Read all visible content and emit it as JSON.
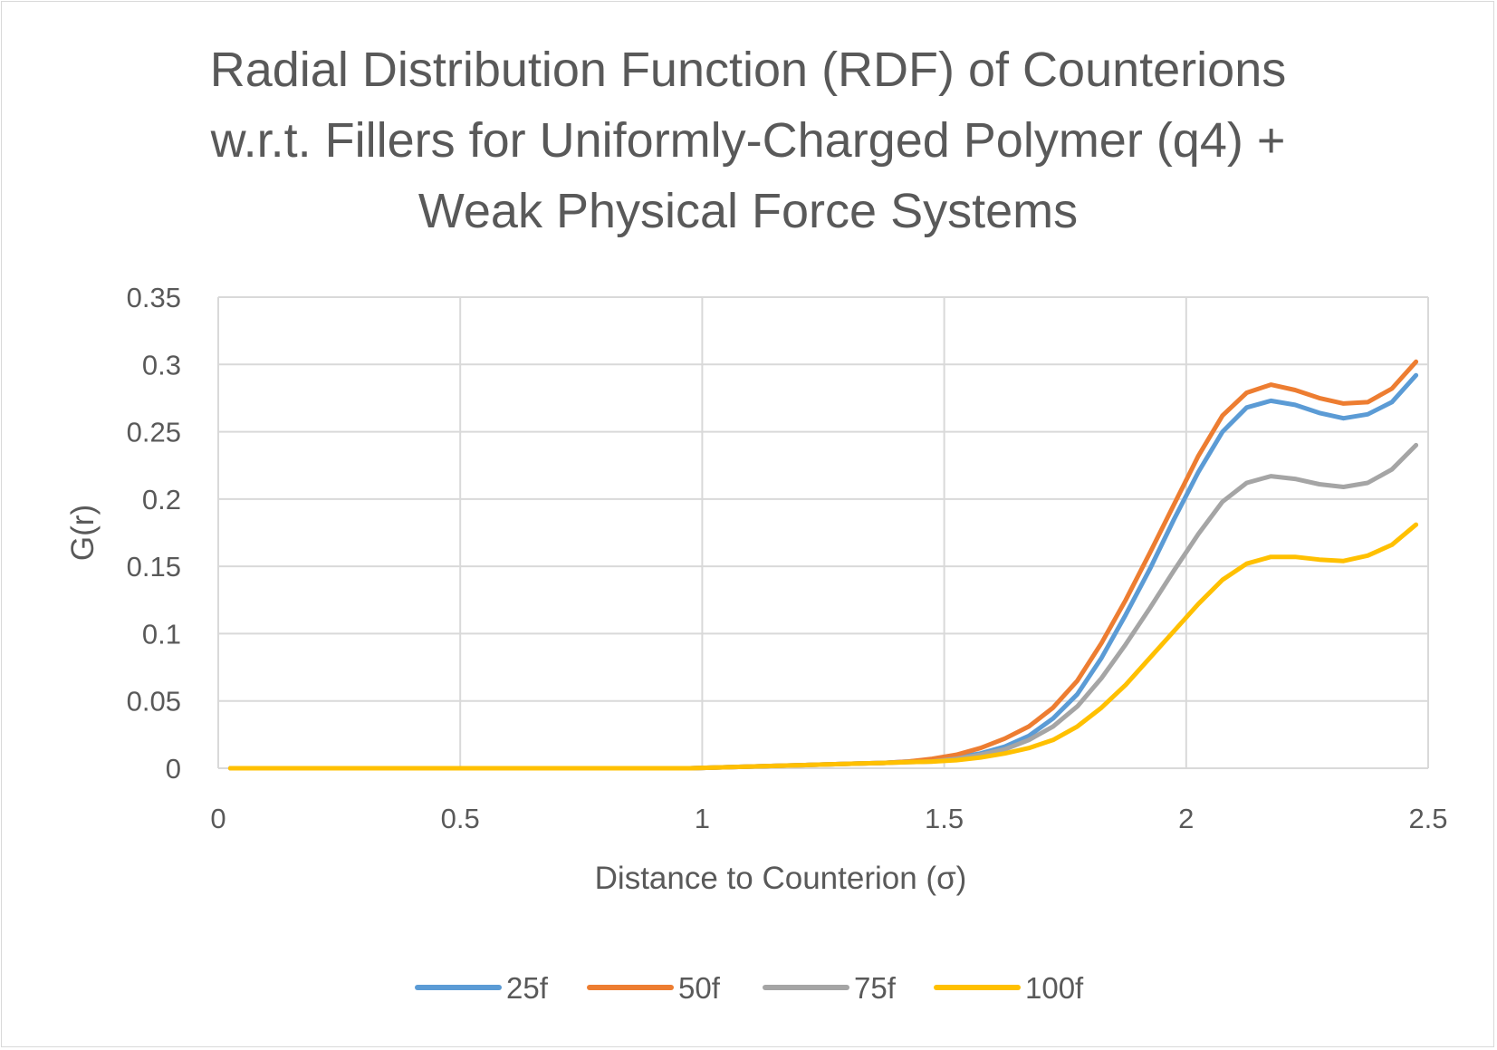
{
  "chart_data": {
    "type": "line",
    "title_lines": [
      "Radial Distribution Function (RDF) of Counterions",
      "w.r.t. Fillers for Uniformly-Charged Polymer (q4) +",
      "Weak Physical Force Systems"
    ],
    "xlabel": "Distance to Counterion (σ)",
    "ylabel": "G(r)",
    "xlim": [
      0,
      2.5
    ],
    "ylim": [
      0,
      0.35
    ],
    "x_ticks": [
      "0",
      "0.5",
      "1",
      "1.5",
      "2",
      "2.5"
    ],
    "y_ticks": [
      "0",
      "0.05",
      "0.1",
      "0.15",
      "0.2",
      "0.25",
      "0.3",
      "0.35"
    ],
    "grid": true,
    "legend_position": "bottom",
    "x": [
      0.025,
      0.075,
      0.125,
      0.175,
      0.225,
      0.275,
      0.325,
      0.375,
      0.425,
      0.475,
      0.525,
      0.575,
      0.625,
      0.675,
      0.725,
      0.775,
      0.825,
      0.875,
      0.925,
      0.975,
      1.025,
      1.075,
      1.125,
      1.175,
      1.225,
      1.275,
      1.325,
      1.375,
      1.425,
      1.475,
      1.525,
      1.575,
      1.625,
      1.675,
      1.725,
      1.775,
      1.825,
      1.875,
      1.925,
      1.975,
      2.025,
      2.075,
      2.125,
      2.175,
      2.225,
      2.275,
      2.325,
      2.375,
      2.425,
      2.475
    ],
    "series": [
      {
        "name": "25f",
        "color": "#5b9bd5",
        "values": [
          0,
          0,
          0,
          0,
          0,
          0,
          0,
          0,
          0,
          0,
          0,
          0,
          0,
          0,
          0,
          0,
          0,
          0,
          0,
          0,
          0.0005,
          0.001,
          0.0015,
          0.002,
          0.0025,
          0.003,
          0.0035,
          0.004,
          0.005,
          0.006,
          0.008,
          0.011,
          0.016,
          0.024,
          0.037,
          0.055,
          0.082,
          0.114,
          0.148,
          0.185,
          0.22,
          0.25,
          0.268,
          0.273,
          0.27,
          0.264,
          0.26,
          0.263,
          0.272,
          0.292
        ]
      },
      {
        "name": "50f",
        "color": "#ed7d31",
        "values": [
          0,
          0,
          0,
          0,
          0,
          0,
          0,
          0,
          0,
          0,
          0,
          0,
          0,
          0,
          0,
          0,
          0,
          0,
          0,
          0,
          0.0005,
          0.001,
          0.0015,
          0.002,
          0.0025,
          0.003,
          0.0035,
          0.004,
          0.005,
          0.007,
          0.01,
          0.015,
          0.022,
          0.031,
          0.045,
          0.065,
          0.093,
          0.125,
          0.16,
          0.196,
          0.232,
          0.262,
          0.279,
          0.285,
          0.281,
          0.275,
          0.271,
          0.272,
          0.282,
          0.302
        ]
      },
      {
        "name": "75f",
        "color": "#a5a5a5",
        "values": [
          0,
          0,
          0,
          0,
          0,
          0,
          0,
          0,
          0,
          0,
          0,
          0,
          0,
          0,
          0,
          0,
          0,
          0,
          0,
          0,
          0.0005,
          0.001,
          0.0015,
          0.002,
          0.0025,
          0.003,
          0.0035,
          0.004,
          0.0045,
          0.005,
          0.007,
          0.01,
          0.014,
          0.021,
          0.031,
          0.046,
          0.067,
          0.092,
          0.119,
          0.147,
          0.174,
          0.198,
          0.212,
          0.217,
          0.215,
          0.211,
          0.209,
          0.212,
          0.222,
          0.24
        ]
      },
      {
        "name": "100f",
        "color": "#ffc000",
        "values": [
          0,
          0,
          0,
          0,
          0,
          0,
          0,
          0,
          0,
          0,
          0,
          0,
          0,
          0,
          0,
          0,
          0,
          0,
          0,
          0,
          0.0005,
          0.001,
          0.0015,
          0.002,
          0.0025,
          0.003,
          0.0035,
          0.004,
          0.0045,
          0.005,
          0.006,
          0.008,
          0.011,
          0.015,
          0.021,
          0.031,
          0.045,
          0.062,
          0.082,
          0.102,
          0.122,
          0.14,
          0.152,
          0.157,
          0.157,
          0.155,
          0.154,
          0.158,
          0.166,
          0.181
        ]
      }
    ]
  }
}
